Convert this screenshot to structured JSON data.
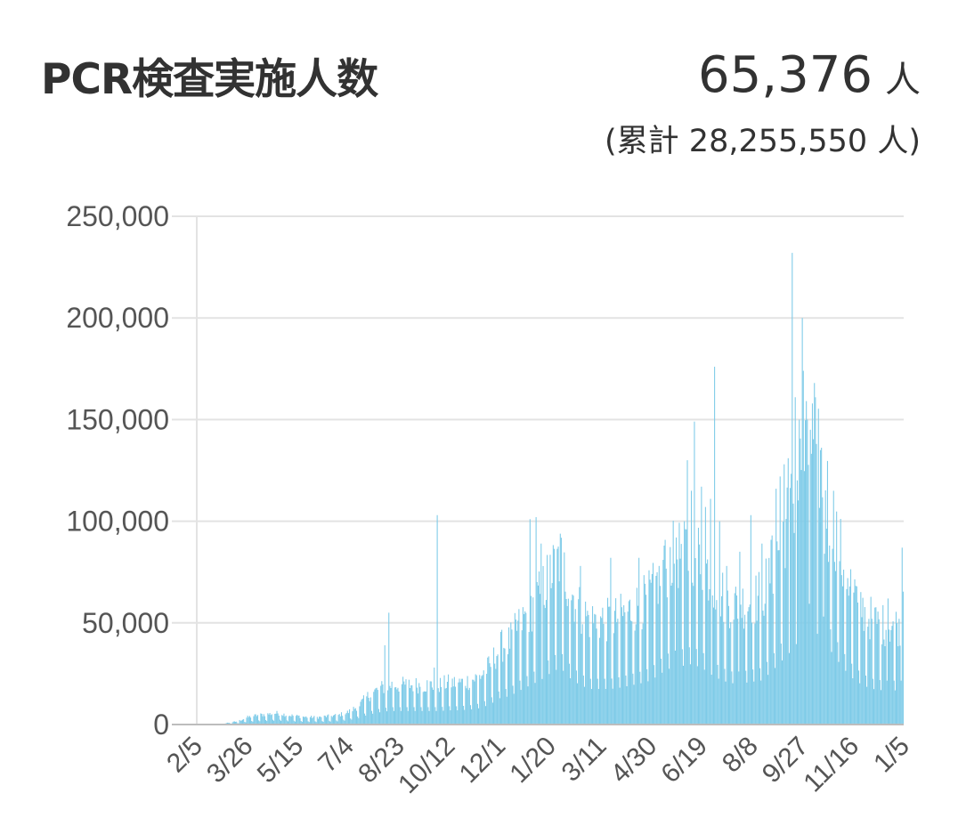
{
  "header": {
    "title": "PCR検査実施人数",
    "latest_value": "65,376",
    "unit": "人",
    "cumulative_prefix": "(累計",
    "cumulative_value": "28,255,550",
    "cumulative_suffix": "人)"
  },
  "colors": {
    "bar": "#7ecbe8",
    "bar_dark": "#6bbfe0",
    "grid": "#e3e3e3",
    "axis": "#bdbdbd",
    "text": "#323232"
  },
  "chart_data": {
    "type": "bar",
    "title": "PCR検査実施人数",
    "ylim": [
      0,
      250000
    ],
    "y_ticks": [
      0,
      50000,
      100000,
      150000,
      200000,
      250000
    ],
    "y_tick_labels": [
      "0",
      "50,000",
      "100,000",
      "150,000",
      "200,000",
      "250,000"
    ],
    "x_tick_labels": [
      "2/5",
      "3/26",
      "5/15",
      "7/4",
      "8/23",
      "10/12",
      "12/1",
      "1/20",
      "3/11",
      "4/30",
      "6/19",
      "8/8",
      "9/27",
      "11/16",
      "1/5"
    ],
    "grid": true,
    "legend": "none",
    "n_days": 701,
    "anchors": [
      [
        0,
        0
      ],
      [
        21,
        0
      ],
      [
        30,
        800
      ],
      [
        40,
        1500
      ],
      [
        50,
        3500
      ],
      [
        60,
        4500
      ],
      [
        70,
        5000
      ],
      [
        80,
        5500
      ],
      [
        90,
        4500
      ],
      [
        100,
        4000
      ],
      [
        110,
        3500
      ],
      [
        120,
        3500
      ],
      [
        130,
        4000
      ],
      [
        140,
        4500
      ],
      [
        150,
        6000
      ],
      [
        160,
        9000
      ],
      [
        170,
        14000
      ],
      [
        180,
        17000
      ],
      [
        190,
        19000
      ],
      [
        200,
        19000
      ],
      [
        210,
        19000
      ],
      [
        220,
        19000
      ],
      [
        230,
        19000
      ],
      [
        240,
        19000
      ],
      [
        250,
        20000
      ],
      [
        260,
        20000
      ],
      [
        270,
        21000
      ],
      [
        280,
        23000
      ],
      [
        290,
        28000
      ],
      [
        300,
        37000
      ],
      [
        310,
        40000
      ],
      [
        320,
        48000
      ],
      [
        330,
        55000
      ],
      [
        340,
        62000
      ],
      [
        350,
        72000
      ],
      [
        360,
        80000
      ],
      [
        370,
        65000
      ],
      [
        380,
        55000
      ],
      [
        390,
        50000
      ],
      [
        400,
        50000
      ],
      [
        410,
        50000
      ],
      [
        420,
        52000
      ],
      [
        430,
        55000
      ],
      [
        440,
        58000
      ],
      [
        450,
        62000
      ],
      [
        460,
        72000
      ],
      [
        470,
        80000
      ],
      [
        480,
        82000
      ],
      [
        490,
        85000
      ],
      [
        500,
        80000
      ],
      [
        510,
        70000
      ],
      [
        520,
        62000
      ],
      [
        530,
        58000
      ],
      [
        540,
        58000
      ],
      [
        550,
        60000
      ],
      [
        560,
        62000
      ],
      [
        570,
        75000
      ],
      [
        580,
        90000
      ],
      [
        590,
        105000
      ],
      [
        600,
        125000
      ],
      [
        610,
        135000
      ],
      [
        620,
        120000
      ],
      [
        630,
        100000
      ],
      [
        640,
        80000
      ],
      [
        650,
        65000
      ],
      [
        660,
        55000
      ],
      [
        670,
        50000
      ],
      [
        680,
        48000
      ],
      [
        690,
        48000
      ],
      [
        700,
        48000
      ]
    ],
    "spikes": [
      [
        186,
        39000
      ],
      [
        190,
        55000
      ],
      [
        235,
        28000
      ],
      [
        238,
        103000
      ],
      [
        330,
        101000
      ],
      [
        336,
        102000
      ],
      [
        341,
        89000
      ],
      [
        380,
        78000
      ],
      [
        410,
        82000
      ],
      [
        438,
        82000
      ],
      [
        458,
        78000
      ],
      [
        463,
        88000
      ],
      [
        475,
        92000
      ],
      [
        483,
        100000
      ],
      [
        486,
        130000
      ],
      [
        490,
        115000
      ],
      [
        493,
        149000
      ],
      [
        500,
        117000
      ],
      [
        504,
        107000
      ],
      [
        509,
        111000
      ],
      [
        513,
        176000
      ],
      [
        518,
        100000
      ],
      [
        525,
        78000
      ],
      [
        538,
        85000
      ],
      [
        549,
        103000
      ],
      [
        560,
        89000
      ],
      [
        570,
        93000
      ],
      [
        574,
        116000
      ],
      [
        578,
        122000
      ],
      [
        582,
        128000
      ],
      [
        586,
        131000
      ],
      [
        590,
        232000
      ],
      [
        593,
        161000
      ],
      [
        597,
        150000
      ],
      [
        600,
        200000
      ],
      [
        601,
        174000
      ],
      [
        605,
        150000
      ],
      [
        608,
        145000
      ],
      [
        612,
        168000
      ],
      [
        614,
        138000
      ],
      [
        618,
        135000
      ],
      [
        622,
        84000
      ],
      [
        626,
        80000
      ],
      [
        632,
        80000
      ],
      [
        640,
        68000
      ],
      [
        655,
        60000
      ],
      [
        685,
        62000
      ],
      [
        696,
        52000
      ],
      [
        699,
        87000
      ],
      [
        700,
        65376
      ]
    ]
  }
}
